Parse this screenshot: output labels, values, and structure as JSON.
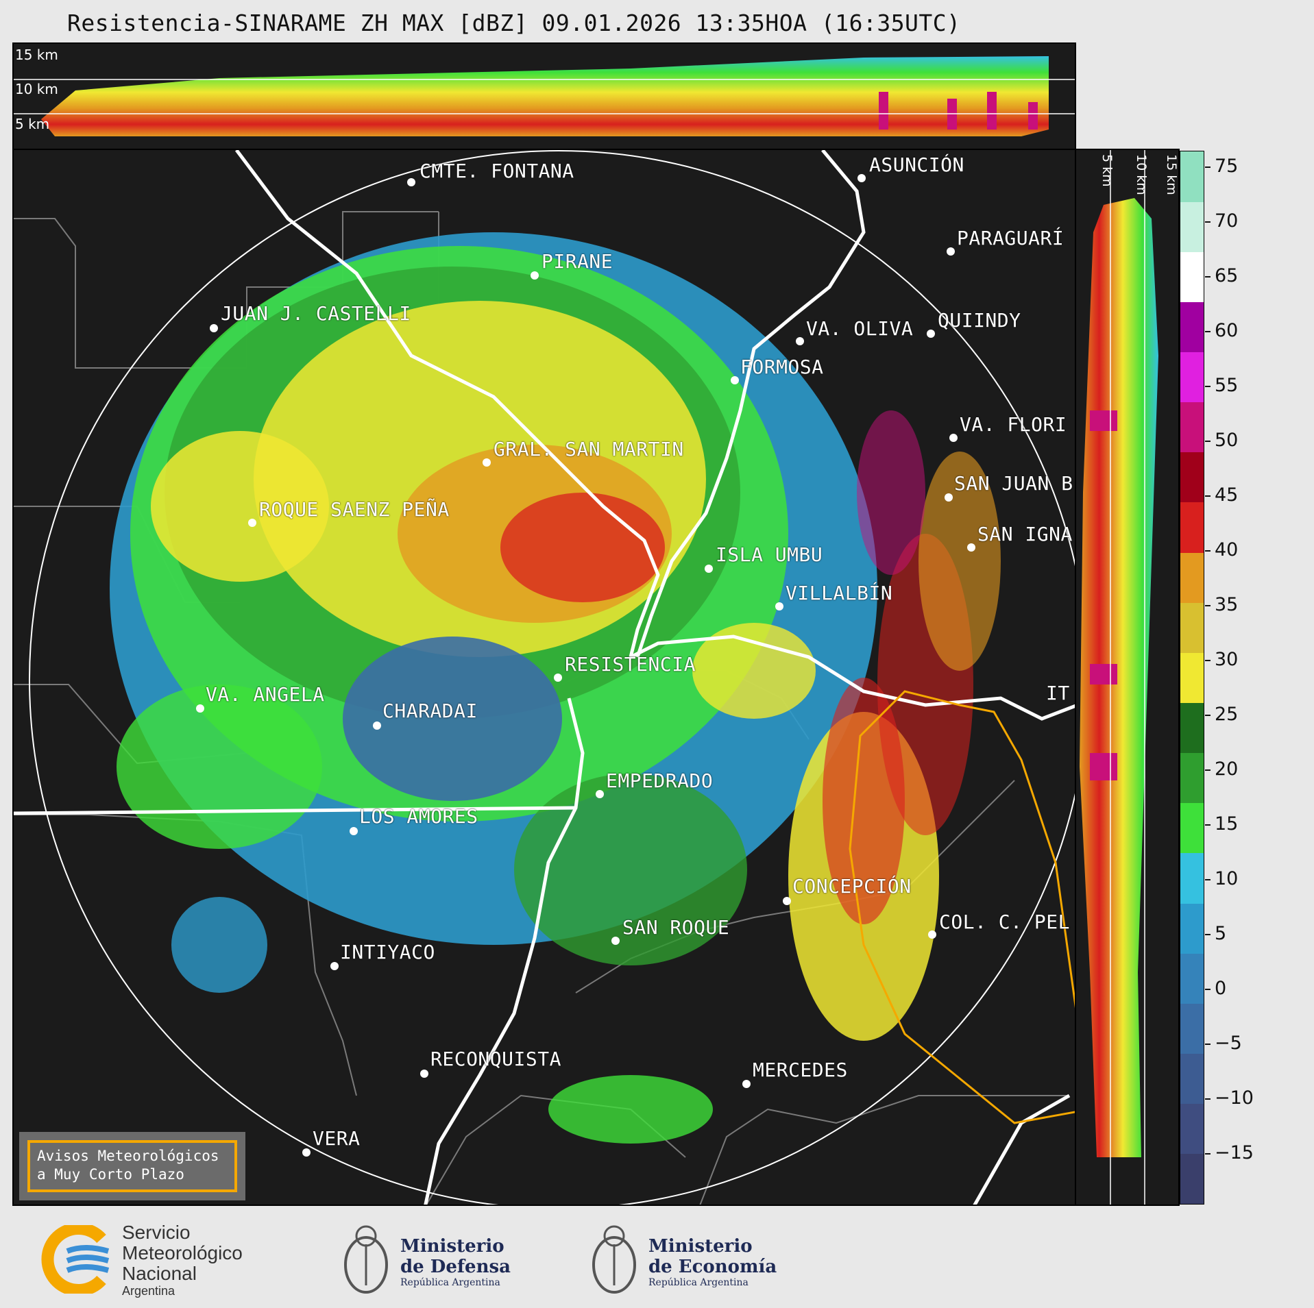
{
  "title": "Resistencia-SINARAME ZH MAX [dBZ] 09.01.2026 13:35HOA (16:35UTC)",
  "height_labels": [
    "15 km",
    "10 km",
    "5 km"
  ],
  "side_height_labels": [
    "5 km",
    "10 km",
    "15 km"
  ],
  "cities": [
    {
      "name": "CMTE. FONTANA"
    },
    {
      "name": "ASUNCIÓN"
    },
    {
      "name": "PARAGUARÍ"
    },
    {
      "name": "PIRANE"
    },
    {
      "name": "JUAN J. CASTELLI"
    },
    {
      "name": "VA. OLIVA"
    },
    {
      "name": "QUIINDY"
    },
    {
      "name": "FORMOSA"
    },
    {
      "name": "VA. FLORI"
    },
    {
      "name": "GRAL. SAN MARTIN"
    },
    {
      "name": "SAN JUAN B"
    },
    {
      "name": "ROQUE SAENZ PEÑA"
    },
    {
      "name": "SAN IGNA"
    },
    {
      "name": "ISLA UMBU"
    },
    {
      "name": "VILLALBÍN"
    },
    {
      "name": "RESISTENCIA"
    },
    {
      "name": "VA. ANGELA"
    },
    {
      "name": "CHARADAI"
    },
    {
      "name": "IT"
    },
    {
      "name": "EMPEDRADO"
    },
    {
      "name": "LOS AMORES"
    },
    {
      "name": "CONCEPCIÓN"
    },
    {
      "name": "SAN ROQUE"
    },
    {
      "name": "COL. C. PEL"
    },
    {
      "name": "INTIYACO"
    },
    {
      "name": "RECONQUISTA"
    },
    {
      "name": "MERCEDES"
    },
    {
      "name": "VERA"
    }
  ],
  "legend": {
    "line1": "Avisos Meteorológicos",
    "line2": "a Muy Corto Plazo"
  },
  "colorbar": {
    "ticks": [
      "75",
      "70",
      "65",
      "60",
      "55",
      "50",
      "45",
      "40",
      "35",
      "30",
      "25",
      "20",
      "15",
      "10",
      "5",
      "0",
      "−5",
      "−10",
      "−15"
    ],
    "colors": [
      "#3a3f6b",
      "#3f4d80",
      "#3d5c92",
      "#3b6ea6",
      "#3583ba",
      "#2d9bcc",
      "#35c1e0",
      "#3ee03a",
      "#2f9e2f",
      "#1e6e1e",
      "#f0e832",
      "#d8c030",
      "#e39a20",
      "#d8201e",
      "#a0001a",
      "#c8107a",
      "#e020e0",
      "#a000a0",
      "#ffffff",
      "#c8f0e0",
      "#90e0c0"
    ],
    "color_meaning": "dBZ reflectivity from -20 (bottom) to 77 (top)"
  },
  "footer": {
    "smn": {
      "line1": "Servicio",
      "line2": "Meteorológico",
      "line3": "Nacional",
      "line4": "Argentina"
    },
    "defensa": {
      "line1": "Ministerio",
      "line2": "de Defensa",
      "line3": "República Argentina"
    },
    "economia": {
      "line1": "Ministerio",
      "line2": "de Economía",
      "line3": "República Argentina"
    }
  }
}
